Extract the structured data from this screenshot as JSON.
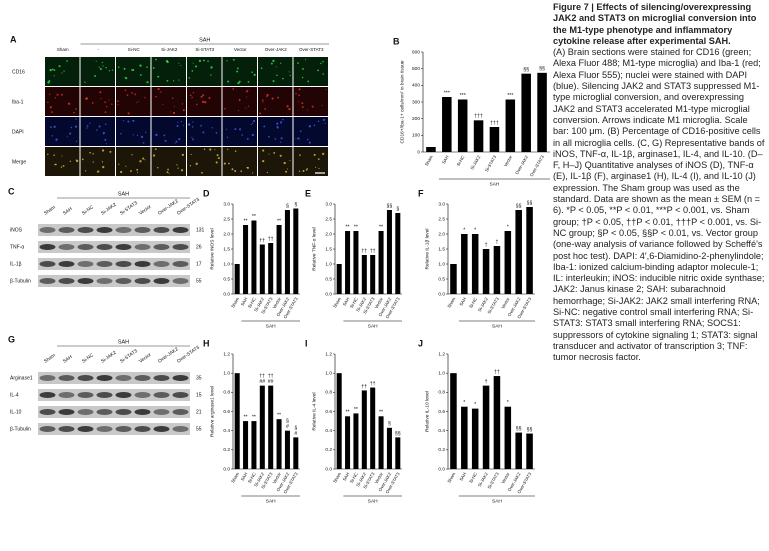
{
  "chart_data": [
    {
      "type": "bar",
      "panel": "B",
      "ylabel": "CD16+/Iba-1+ cells/mm² in brain tissue",
      "xlabel": "SAH",
      "categories": [
        "Sham",
        "SAH",
        "Si-NC",
        "Si-JAK2",
        "Si-STAT3",
        "Vector",
        "Over-JAK2",
        "Over-STAT3"
      ],
      "values": [
        30,
        330,
        315,
        190,
        150,
        315,
        470,
        475
      ],
      "annotations": [
        null,
        "***",
        "***",
        "†††",
        "†††",
        "***",
        "§§",
        "§§"
      ],
      "color": "#000000",
      "ylim": [
        0,
        600
      ],
      "yticks": [
        0,
        100,
        200,
        300,
        400,
        500,
        600
      ]
    },
    {
      "type": "bar",
      "panel": "D",
      "ylabel": "Relative iNOS level",
      "xlabel": "SAH",
      "categories": [
        "Sham",
        "SAH",
        "Si-NC",
        "Si-JAK2",
        "Si-STAT3",
        "Vector",
        "Over-JAK2",
        "Over-STAT3"
      ],
      "values": [
        1.0,
        2.3,
        2.45,
        1.65,
        1.7,
        2.3,
        2.8,
        2.85
      ],
      "annotations": [
        null,
        "**",
        "**",
        "††",
        "††",
        "**",
        "§",
        "§"
      ],
      "color": "#000000",
      "ylim": [
        0,
        3
      ],
      "yticks": [
        {
          "value": 0,
          "label": "0.0"
        },
        {
          "value": 0.5,
          "label": "0.5"
        },
        {
          "value": 1,
          "label": "1.0"
        },
        {
          "value": 1.5,
          "label": "1.5"
        },
        {
          "value": 2,
          "label": "2.0"
        },
        {
          "value": 2.5,
          "label": "2.5"
        },
        {
          "value": 3,
          "label": "3.0"
        }
      ]
    },
    {
      "type": "bar",
      "panel": "E",
      "ylabel": "Relative TNF-α level",
      "xlabel": "SAH",
      "categories": [
        "Sham",
        "SAH",
        "Si-NC",
        "Si-JAK2",
        "Si-STAT3",
        "Vector",
        "Over-JAK2",
        "Over-STAT3"
      ],
      "values": [
        1.0,
        2.1,
        2.1,
        1.3,
        1.3,
        2.1,
        2.8,
        2.7
      ],
      "annotations": [
        null,
        "**",
        "**",
        "††",
        "††",
        "**",
        "§§",
        "§"
      ],
      "color": "#000000",
      "ylim": [
        0,
        3
      ],
      "yticks": [
        {
          "value": 0,
          "label": "0.0"
        },
        {
          "value": 0.5,
          "label": "0.5"
        },
        {
          "value": 1,
          "label": "1.0"
        },
        {
          "value": 1.5,
          "label": "1.5"
        },
        {
          "value": 2,
          "label": "2.0"
        },
        {
          "value": 2.5,
          "label": "2.5"
        },
        {
          "value": 3,
          "label": "3.0"
        }
      ]
    },
    {
      "type": "bar",
      "panel": "F",
      "ylabel": "Relative IL-1β level",
      "xlabel": "SAH",
      "categories": [
        "Sham",
        "SAH",
        "Si-NC",
        "Si-JAK2",
        "Si-STAT3",
        "Vector",
        "Over-JAK2",
        "Over-STAT3"
      ],
      "values": [
        1.0,
        2.0,
        2.0,
        1.5,
        1.6,
        2.1,
        2.8,
        2.9
      ],
      "annotations": [
        null,
        "*",
        "*",
        "†",
        "†",
        "*",
        "§§",
        "§§"
      ],
      "color": "#000000",
      "ylim": [
        0,
        3
      ],
      "yticks": [
        {
          "value": 0,
          "label": "0.0"
        },
        {
          "value": 0.5,
          "label": "0.5"
        },
        {
          "value": 1,
          "label": "1.0"
        },
        {
          "value": 1.5,
          "label": "1.5"
        },
        {
          "value": 2,
          "label": "2.0"
        },
        {
          "value": 2.5,
          "label": "2.5"
        },
        {
          "value": 3,
          "label": "3.0"
        }
      ]
    },
    {
      "type": "bar",
      "panel": "H",
      "ylabel": "Relative arginase1 level",
      "xlabel": "SAH",
      "categories": [
        "Sham",
        "SAH",
        "Si-NC",
        "Si-JAK2",
        "Si-STAT3",
        "Vector",
        "Over-JAK2",
        "Over-STAT3"
      ],
      "values": [
        1.0,
        0.5,
        0.5,
        0.87,
        0.87,
        0.52,
        0.4,
        0.33
      ],
      "annotations": [
        null,
        "**",
        "**",
        "†† ##",
        "†† ##",
        "**",
        "§ #",
        "§ #"
      ],
      "color": "#000000",
      "ylim": [
        0,
        1.2
      ],
      "yticks": [
        {
          "value": 0,
          "label": "0.0"
        },
        {
          "value": 0.2,
          "label": "0.2"
        },
        {
          "value": 0.4,
          "label": "0.4"
        },
        {
          "value": 0.6,
          "label": "0.6"
        },
        {
          "value": 0.8,
          "label": "0.8"
        },
        {
          "value": 1,
          "label": "1.0"
        },
        {
          "value": 1.2,
          "label": "1.2"
        }
      ]
    },
    {
      "type": "bar",
      "panel": "I",
      "ylabel": "Relative IL-4 level",
      "xlabel": "SAH",
      "categories": [
        "Sham",
        "SAH",
        "Si-NC",
        "Si-JAK2",
        "Si-STAT3",
        "Vector",
        "Over-JAK2",
        "Over-STAT3"
      ],
      "values": [
        1.0,
        0.55,
        0.58,
        0.82,
        0.85,
        0.55,
        0.43,
        0.33
      ],
      "annotations": [
        null,
        "**",
        "**",
        "††",
        "††",
        "**",
        "§",
        "§§"
      ],
      "color": "#000000",
      "ylim": [
        0,
        1.2
      ],
      "yticks": [
        {
          "value": 0,
          "label": "0.0"
        },
        {
          "value": 0.2,
          "label": "0.2"
        },
        {
          "value": 0.4,
          "label": "0.4"
        },
        {
          "value": 0.6,
          "label": "0.6"
        },
        {
          "value": 0.8,
          "label": "0.8"
        },
        {
          "value": 1,
          "label": "1.0"
        },
        {
          "value": 1.2,
          "label": "1.2"
        }
      ]
    },
    {
      "type": "bar",
      "panel": "J",
      "ylabel": "Relative IL-10 level",
      "xlabel": "SAH",
      "categories": [
        "Sham",
        "SAH",
        "Si-NC",
        "Si-JAK2",
        "Si-STAT3",
        "Vector",
        "Over-JAK2",
        "Over-STAT3"
      ],
      "values": [
        1.0,
        0.65,
        0.63,
        0.87,
        0.97,
        0.65,
        0.38,
        0.37
      ],
      "annotations": [
        null,
        "*",
        "*",
        "†",
        "††",
        "*",
        "§§",
        "§§"
      ],
      "color": "#000000",
      "ylim": [
        0,
        1.2
      ],
      "yticks": [
        {
          "value": 0,
          "label": "0.0"
        },
        {
          "value": 0.2,
          "label": "0.2"
        },
        {
          "value": 0.4,
          "label": "0.4"
        },
        {
          "value": 0.6,
          "label": "0.6"
        },
        {
          "value": 0.8,
          "label": "0.8"
        },
        {
          "value": 1,
          "label": "1.0"
        },
        {
          "value": 1.2,
          "label": "1.2"
        }
      ]
    }
  ],
  "panel_a": {
    "label": "A",
    "group": "SAH",
    "columns": [
      "Sham",
      "-",
      "Si-NC",
      "Si-JAK2",
      "Si-STAT3",
      "Vector",
      "Over-JAK2",
      "Over-STAT3"
    ],
    "rows": [
      "CD16",
      "Iba-1",
      "DAPI",
      "Merge"
    ]
  },
  "blots": [
    {
      "label": "C",
      "group": "SAH",
      "lanes": [
        "Sham",
        "SAH",
        "Si-NC",
        "Si-JAK2",
        "Si-STAT3",
        "Vector",
        "Over-JAK2",
        "Over-STAT3"
      ],
      "rows": [
        {
          "name": "iNOS",
          "kda": "131"
        },
        {
          "name": "TNF-α",
          "kda": "26"
        },
        {
          "name": "IL-1β",
          "kda": "17"
        },
        {
          "name": "β-Tubulin",
          "kda": "55"
        }
      ]
    },
    {
      "label": "G",
      "group": "SAH",
      "lanes": [
        "Sham",
        "SAH",
        "Si-NC",
        "Si-JAK2",
        "Si-STAT3",
        "Vector",
        "Over-JAK2",
        "Over-STAT3"
      ],
      "rows": [
        {
          "name": "Arginase1",
          "kda": "35"
        },
        {
          "name": "IL-4",
          "kda": "15"
        },
        {
          "name": "IL-10",
          "kda": "21"
        },
        {
          "name": "β-Tubulin",
          "kda": "55"
        }
      ]
    }
  ],
  "caption": {
    "title": "Figure 7 | Effects of silencing/overexpressing JAK2 and STAT3 on microglial conversion into the M1-type phenotype and inflammatory cytokine release after experimental SAH.",
    "body": "(A) Brain sections were stained for CD16 (green; Alexa Fluor 488; M1-type microglia) and Iba-1 (red; Alexa Fluor 555); nuclei were stained with DAPI (blue). Silencing JAK2 and STAT3 suppressed M1-type microglial conversion, and overexpressing JAK2 and STAT3 accelerated M1-type microglial conversion. Arrows indicate M1 microglia. Scale bar: 100 μm. (B) Percentage of CD16-positive cells in all microglia cells. (C, G) Representative bands of iNOS, TNF-α, IL-1β, arginase1, IL-4, and IL-10. (D–F, H–J) Quantitative analyses of iNOS (D), TNF-α (E), IL-1β (F), arginase1 (H), IL-4 (I), and IL-10 (J) expression. The Sham group was used as the standard. Data are shown as the mean ± SEM (n = 6). *P < 0.05, **P < 0.01, ***P < 0.001, vs. Sham group; †P < 0.05, ††P < 0.01, †††P < 0.001, vs. Si-NC group; §P < 0.05, §§P < 0.01, vs. Vector group (one-way analysis of variance followed by Scheffé's post hoc test). DAPI: 4′,6-Diamidino-2-phenylindole; Iba-1: ionized calcium-binding adaptor molecule-1; IL: interleukin; iNOS: inducible nitric oxide synthase; JAK2: Janus kinase 2; SAH: subarachnoid hemorrhage; Si-JAK2: JAK2 small interfering RNA; Si-NC: negative control small interfering RNA; Si-STAT3: STAT3 small interfering RNA; SOCS1: suppressors of cytokine signaling 1; STAT3: signal transducer and activator of transcription 3; TNF: tumor necrosis factor."
  }
}
